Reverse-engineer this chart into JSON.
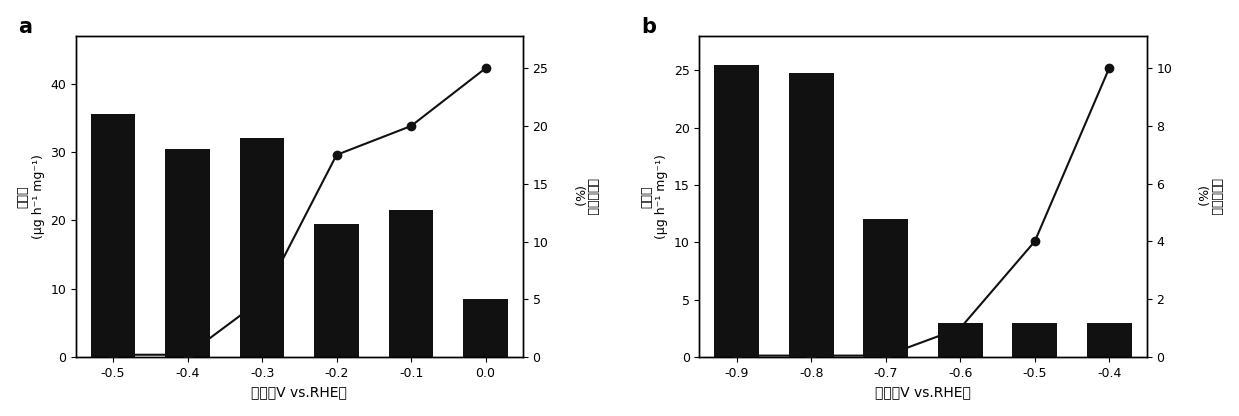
{
  "a": {
    "x_labels": [
      "-0.5",
      "-0.4",
      "-0.3",
      "-0.2",
      "-0.1",
      "0.0"
    ],
    "x_vals": [
      -0.5,
      -0.4,
      -0.3,
      -0.2,
      -0.1,
      0.0
    ],
    "bar_heights": [
      35.5,
      30.5,
      32.0,
      19.5,
      21.5,
      8.5
    ],
    "line_vals": [
      0.2,
      0.2,
      5.0,
      17.5,
      20.0,
      25.0
    ],
    "bar_color": "#111111",
    "line_color": "#111111",
    "left_ylabel_top": "(μg h⁻¹ mg⁻¹)",
    "left_ylabel_bottom": "氯产量",
    "right_ylabel_top": "(%)",
    "right_ylabel_bottom": "法拉第效率",
    "xlabel": "电压（V vs.RHE）",
    "left_ylim": [
      0,
      47
    ],
    "left_yticks": [
      0,
      10,
      20,
      30,
      40
    ],
    "right_ylim": [
      0,
      27.8
    ],
    "right_yticks": [
      0,
      5,
      10,
      15,
      20,
      25
    ],
    "panel_label": "a"
  },
  "b": {
    "x_labels": [
      "-0.9",
      "-0.8",
      "-0.7",
      "-0.6",
      "-0.5",
      "-0.4"
    ],
    "x_vals": [
      -0.9,
      -0.8,
      -0.7,
      -0.6,
      -0.5,
      -0.4
    ],
    "bar_heights": [
      25.5,
      24.8,
      12.0,
      3.0,
      3.0,
      3.0
    ],
    "line_vals": [
      0.05,
      0.05,
      0.05,
      1.0,
      4.0,
      10.0
    ],
    "bar_color": "#111111",
    "line_color": "#111111",
    "left_ylabel_top": "(μg h⁻¹ mg⁻¹)",
    "left_ylabel_bottom": "氯产量",
    "right_ylabel_top": "(%)",
    "right_ylabel_bottom": "法拉第效率",
    "xlabel": "电压（V vs.RHE）",
    "left_ylim": [
      0,
      28
    ],
    "left_yticks": [
      0,
      5,
      10,
      15,
      20,
      25
    ],
    "right_ylim": [
      0,
      11.11
    ],
    "right_yticks": [
      0,
      2,
      4,
      6,
      8,
      10
    ],
    "panel_label": "b"
  },
  "fig_width": 12.39,
  "fig_height": 4.16,
  "dpi": 100,
  "bg_color": "#f0f0f0"
}
